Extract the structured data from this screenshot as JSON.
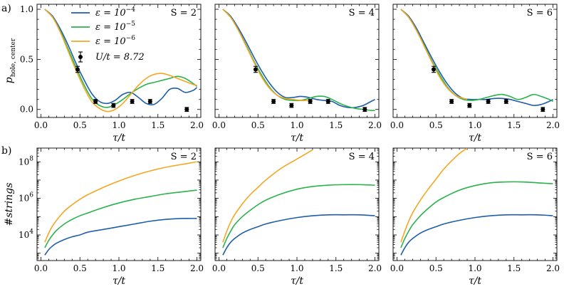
{
  "colors": {
    "eps1": "#1f5ea8",
    "eps2": "#2bb24c",
    "eps3": "#f5a623",
    "exp": "#000000"
  },
  "panel_letters": {
    "a": "a)",
    "b": "b)"
  },
  "legend": {
    "series": [
      {
        "key": "eps1",
        "base": "ε = 10",
        "exp": "−4"
      },
      {
        "key": "eps2",
        "base": "ε = 10",
        "exp": "−5"
      },
      {
        "key": "eps3",
        "base": "ε = 10",
        "exp": "−6"
      }
    ],
    "experiment": "U/t = 8.72"
  },
  "chart_data": [
    {
      "type": "line",
      "row": "a",
      "title": "S = 2",
      "xlabel": "τ/t",
      "ylabel_base": "p",
      "ylabel_sub": "hole, center",
      "xlim": [
        -0.05,
        2.05
      ],
      "ylim": [
        -0.08,
        1.05
      ],
      "xticks": [
        "0.0",
        "0.5",
        "1.0",
        "1.5",
        "2.0"
      ],
      "yticks": [
        "0.0",
        "0.5",
        "1.0"
      ],
      "series": [
        {
          "name": "ε = 10^-4",
          "key": "eps1",
          "x": [
            0.05,
            0.15,
            0.25,
            0.35,
            0.45,
            0.55,
            0.65,
            0.75,
            0.85,
            0.95,
            1.05,
            1.15,
            1.25,
            1.35,
            1.45,
            1.55,
            1.65,
            1.75,
            1.85,
            1.95,
            2.0
          ],
          "y": [
            1.0,
            0.93,
            0.8,
            0.64,
            0.46,
            0.3,
            0.16,
            0.08,
            0.06,
            0.09,
            0.15,
            0.17,
            0.12,
            0.06,
            0.05,
            0.11,
            0.2,
            0.21,
            0.17,
            0.19,
            0.22
          ]
        },
        {
          "name": "ε = 10^-5",
          "key": "eps2",
          "x": [
            0.05,
            0.15,
            0.25,
            0.35,
            0.45,
            0.55,
            0.65,
            0.75,
            0.85,
            0.95,
            1.05,
            1.15,
            1.25,
            1.35,
            1.45,
            1.55,
            1.65,
            1.75,
            1.85,
            1.95,
            2.0
          ],
          "y": [
            1.0,
            0.92,
            0.78,
            0.6,
            0.42,
            0.25,
            0.11,
            0.04,
            0.02,
            0.05,
            0.1,
            0.16,
            0.21,
            0.25,
            0.27,
            0.29,
            0.31,
            0.33,
            0.31,
            0.26,
            0.23
          ]
        },
        {
          "name": "ε = 10^-6",
          "key": "eps3",
          "x": [
            0.05,
            0.15,
            0.25,
            0.35,
            0.45,
            0.55,
            0.65,
            0.75,
            0.85,
            0.95,
            1.05,
            1.15,
            1.25,
            1.35,
            1.45,
            1.55,
            1.65,
            1.75,
            1.85,
            1.95,
            2.0
          ],
          "y": [
            1.0,
            0.92,
            0.77,
            0.58,
            0.39,
            0.22,
            0.08,
            0.01,
            -0.02,
            0.0,
            0.06,
            0.15,
            0.24,
            0.31,
            0.35,
            0.36,
            0.34,
            0.31,
            0.28,
            0.25,
            0.24
          ]
        }
      ],
      "points": {
        "x": [
          0.47,
          0.7,
          0.93,
          1.17,
          1.4,
          1.87
        ],
        "y": [
          0.4,
          0.08,
          0.04,
          0.08,
          0.08,
          0.0
        ],
        "err": [
          0.03,
          0.02,
          0.02,
          0.02,
          0.02,
          0.02
        ]
      }
    },
    {
      "type": "line",
      "row": "a",
      "title": "S = 4",
      "xlabel": "τ/t",
      "xlim": [
        -0.05,
        2.05
      ],
      "ylim": [
        -0.08,
        1.05
      ],
      "xticks": [
        "0.0",
        "0.5",
        "1.0",
        "1.5",
        "2.0"
      ],
      "yticks": [
        "",
        "",
        ""
      ],
      "series": [
        {
          "name": "ε = 10^-4",
          "key": "eps1",
          "x": [
            0.05,
            0.15,
            0.25,
            0.35,
            0.45,
            0.55,
            0.65,
            0.75,
            0.85,
            0.95,
            1.05,
            1.15,
            1.25,
            1.35,
            1.45,
            1.55,
            1.65,
            1.75,
            1.85,
            1.95,
            2.0
          ],
          "y": [
            1.0,
            0.93,
            0.81,
            0.67,
            0.52,
            0.38,
            0.26,
            0.17,
            0.12,
            0.12,
            0.13,
            0.12,
            0.1,
            0.09,
            0.08,
            0.04,
            0.02,
            0.02,
            0.04,
            0.08,
            0.1
          ]
        },
        {
          "name": "ε = 10^-5",
          "key": "eps2",
          "x": [
            0.05,
            0.15,
            0.25,
            0.35,
            0.45,
            0.55,
            0.65,
            0.75,
            0.85,
            0.95,
            1.05,
            1.15,
            1.25,
            1.35,
            1.45,
            1.55,
            1.65,
            1.75,
            1.85,
            1.95,
            2.0
          ],
          "y": [
            1.0,
            0.92,
            0.79,
            0.64,
            0.48,
            0.34,
            0.22,
            0.14,
            0.1,
            0.09,
            0.09,
            0.11,
            0.13,
            0.13,
            0.1,
            0.06,
            0.03,
            0.01,
            0.0,
            -0.01,
            -0.01
          ]
        },
        {
          "name": "ε = 10^-6",
          "key": "eps3",
          "x": [
            0.05,
            0.15,
            0.25,
            0.35,
            0.45,
            0.55,
            0.65,
            0.75,
            0.85,
            0.95,
            1.05,
            1.15,
            1.2
          ],
          "y": [
            1.0,
            0.92,
            0.79,
            0.63,
            0.47,
            0.32,
            0.21,
            0.14,
            0.11,
            0.1,
            0.09,
            0.09,
            0.09
          ]
        }
      ],
      "points": {
        "x": [
          0.47,
          0.7,
          0.93,
          1.17,
          1.4,
          1.87
        ],
        "y": [
          0.4,
          0.08,
          0.04,
          0.08,
          0.08,
          0.0
        ],
        "err": [
          0.03,
          0.02,
          0.02,
          0.02,
          0.02,
          0.02
        ]
      }
    },
    {
      "type": "line",
      "row": "a",
      "title": "S = 6",
      "xlabel": "τ/t",
      "xlim": [
        -0.05,
        2.05
      ],
      "ylim": [
        -0.08,
        1.05
      ],
      "xticks": [
        "0.0",
        "0.5",
        "1.0",
        "1.5",
        "2.0"
      ],
      "yticks": [
        "",
        "",
        ""
      ],
      "series": [
        {
          "name": "ε = 10^-4",
          "key": "eps1",
          "x": [
            0.05,
            0.15,
            0.25,
            0.35,
            0.45,
            0.55,
            0.65,
            0.75,
            0.85,
            0.95,
            1.05,
            1.15,
            1.25,
            1.35,
            1.45,
            1.55,
            1.65,
            1.75,
            1.85,
            1.95,
            2.0
          ],
          "y": [
            1.0,
            0.93,
            0.81,
            0.66,
            0.51,
            0.37,
            0.25,
            0.16,
            0.11,
            0.1,
            0.1,
            0.1,
            0.11,
            0.11,
            0.1,
            0.08,
            0.06,
            0.04,
            0.05,
            0.08,
            0.1
          ]
        },
        {
          "name": "ε = 10^-5",
          "key": "eps2",
          "x": [
            0.05,
            0.15,
            0.25,
            0.35,
            0.45,
            0.55,
            0.65,
            0.75,
            0.85,
            0.95,
            1.05,
            1.15,
            1.25,
            1.35,
            1.45,
            1.55,
            1.65,
            1.75,
            1.85,
            1.95,
            2.0
          ],
          "y": [
            1.0,
            0.92,
            0.79,
            0.64,
            0.48,
            0.34,
            0.22,
            0.14,
            0.1,
            0.09,
            0.1,
            0.12,
            0.14,
            0.15,
            0.13,
            0.1,
            0.12,
            0.15,
            0.13,
            0.1,
            0.08
          ]
        },
        {
          "name": "ε = 10^-6",
          "key": "eps3",
          "x": [
            0.05,
            0.15,
            0.25,
            0.35,
            0.45,
            0.55,
            0.65,
            0.75,
            0.85,
            0.9
          ],
          "y": [
            1.0,
            0.92,
            0.79,
            0.63,
            0.47,
            0.32,
            0.21,
            0.14,
            0.11,
            0.1
          ]
        }
      ],
      "points": {
        "x": [
          0.47,
          0.7,
          0.93,
          1.17,
          1.4,
          1.87
        ],
        "y": [
          0.4,
          0.08,
          0.04,
          0.08,
          0.08,
          0.0
        ],
        "err": [
          0.03,
          0.02,
          0.02,
          0.02,
          0.02,
          0.02
        ]
      }
    },
    {
      "type": "line",
      "row": "b",
      "title": "S = 2",
      "xlabel": "τ/t",
      "ylabel": "#strings",
      "yscale": "log",
      "xlim": [
        -0.05,
        2.05
      ],
      "ylim_log10": [
        2.6,
        8.75
      ],
      "xticks": [
        "0.0",
        "0.5",
        "1.0",
        "1.5",
        "2.0"
      ],
      "ytick_exps": [
        "4",
        "6",
        "8"
      ],
      "series": [
        {
          "name": "ε = 10^-4",
          "key": "eps1",
          "x": [
            0.05,
            0.1,
            0.15,
            0.2,
            0.3,
            0.4,
            0.5,
            0.6,
            0.8,
            1.0,
            1.2,
            1.4,
            1.6,
            1.8,
            2.0
          ],
          "log10y": [
            2.9,
            3.2,
            3.4,
            3.55,
            3.75,
            3.9,
            4.0,
            4.15,
            4.3,
            4.45,
            4.6,
            4.75,
            4.85,
            4.9,
            4.9
          ]
        },
        {
          "name": "ε = 10^-5",
          "key": "eps2",
          "x": [
            0.05,
            0.1,
            0.15,
            0.2,
            0.3,
            0.4,
            0.5,
            0.6,
            0.8,
            1.0,
            1.2,
            1.4,
            1.6,
            1.8,
            2.0
          ],
          "log10y": [
            3.3,
            3.7,
            4.0,
            4.25,
            4.6,
            4.85,
            5.05,
            5.2,
            5.5,
            5.75,
            5.95,
            6.1,
            6.25,
            6.35,
            6.45
          ]
        },
        {
          "name": "ε = 10^-6",
          "key": "eps3",
          "x": [
            0.05,
            0.1,
            0.15,
            0.2,
            0.3,
            0.4,
            0.5,
            0.6,
            0.8,
            1.0,
            1.2,
            1.4,
            1.6,
            1.8,
            2.0
          ],
          "log10y": [
            3.6,
            4.1,
            4.5,
            4.8,
            5.3,
            5.65,
            5.95,
            6.2,
            6.6,
            6.95,
            7.25,
            7.5,
            7.7,
            7.85,
            8.0
          ]
        }
      ]
    },
    {
      "type": "line",
      "row": "b",
      "title": "S = 4",
      "xlabel": "τ/t",
      "yscale": "log",
      "xlim": [
        -0.05,
        2.05
      ],
      "ylim_log10": [
        2.6,
        8.75
      ],
      "xticks": [
        "0.0",
        "0.5",
        "1.0",
        "1.5",
        "2.0"
      ],
      "ytick_exps": [
        "",
        "",
        ""
      ],
      "series": [
        {
          "name": "ε = 10^-4",
          "key": "eps1",
          "x": [
            0.05,
            0.1,
            0.15,
            0.2,
            0.3,
            0.4,
            0.5,
            0.6,
            0.8,
            1.0,
            1.2,
            1.4,
            1.6,
            1.8,
            2.0
          ],
          "log10y": [
            2.9,
            3.3,
            3.6,
            3.8,
            4.1,
            4.3,
            4.45,
            4.6,
            4.8,
            4.95,
            5.05,
            5.1,
            5.1,
            5.1,
            5.05
          ]
        },
        {
          "name": "ε = 10^-5",
          "key": "eps2",
          "x": [
            0.05,
            0.1,
            0.15,
            0.2,
            0.3,
            0.4,
            0.5,
            0.6,
            0.8,
            1.0,
            1.2,
            1.4,
            1.6,
            1.8,
            2.0
          ],
          "log10y": [
            3.3,
            3.8,
            4.2,
            4.55,
            5.0,
            5.35,
            5.65,
            5.9,
            6.25,
            6.5,
            6.65,
            6.72,
            6.75,
            6.75,
            6.72
          ]
        },
        {
          "name": "ε = 10^-6",
          "key": "eps3",
          "x": [
            0.05,
            0.1,
            0.15,
            0.2,
            0.3,
            0.4,
            0.5,
            0.6,
            0.8,
            1.0,
            1.2
          ],
          "log10y": [
            3.6,
            4.2,
            4.7,
            5.1,
            5.7,
            6.2,
            6.6,
            7.0,
            7.65,
            8.15,
            8.65
          ]
        }
      ]
    },
    {
      "type": "line",
      "row": "b",
      "title": "S = 6",
      "xlabel": "τ/t",
      "yscale": "log",
      "xlim": [
        -0.05,
        2.05
      ],
      "ylim_log10": [
        2.6,
        8.75
      ],
      "xticks": [
        "0.0",
        "0.5",
        "1.0",
        "1.5",
        "2.0"
      ],
      "ytick_exps": [
        "",
        "",
        ""
      ],
      "series": [
        {
          "name": "ε = 10^-4",
          "key": "eps1",
          "x": [
            0.05,
            0.1,
            0.15,
            0.2,
            0.3,
            0.4,
            0.5,
            0.6,
            0.8,
            1.0,
            1.2,
            1.4,
            1.6,
            1.8,
            2.0
          ],
          "log10y": [
            2.9,
            3.3,
            3.6,
            3.8,
            4.1,
            4.3,
            4.45,
            4.6,
            4.8,
            4.95,
            5.05,
            5.1,
            5.1,
            5.1,
            5.05
          ]
        },
        {
          "name": "ε = 10^-5",
          "key": "eps2",
          "x": [
            0.05,
            0.1,
            0.15,
            0.2,
            0.3,
            0.4,
            0.5,
            0.6,
            0.8,
            1.0,
            1.2,
            1.4,
            1.6,
            1.8,
            2.0
          ],
          "log10y": [
            3.3,
            3.8,
            4.2,
            4.55,
            5.05,
            5.45,
            5.8,
            6.05,
            6.45,
            6.7,
            6.85,
            6.9,
            6.9,
            6.85,
            6.8
          ]
        },
        {
          "name": "ε = 10^-6",
          "key": "eps3",
          "x": [
            0.05,
            0.1,
            0.15,
            0.2,
            0.3,
            0.4,
            0.5,
            0.6,
            0.7,
            0.8,
            0.9
          ],
          "log10y": [
            3.6,
            4.2,
            4.75,
            5.2,
            5.9,
            6.5,
            7.05,
            7.6,
            8.05,
            8.45,
            8.75
          ]
        }
      ]
    }
  ]
}
